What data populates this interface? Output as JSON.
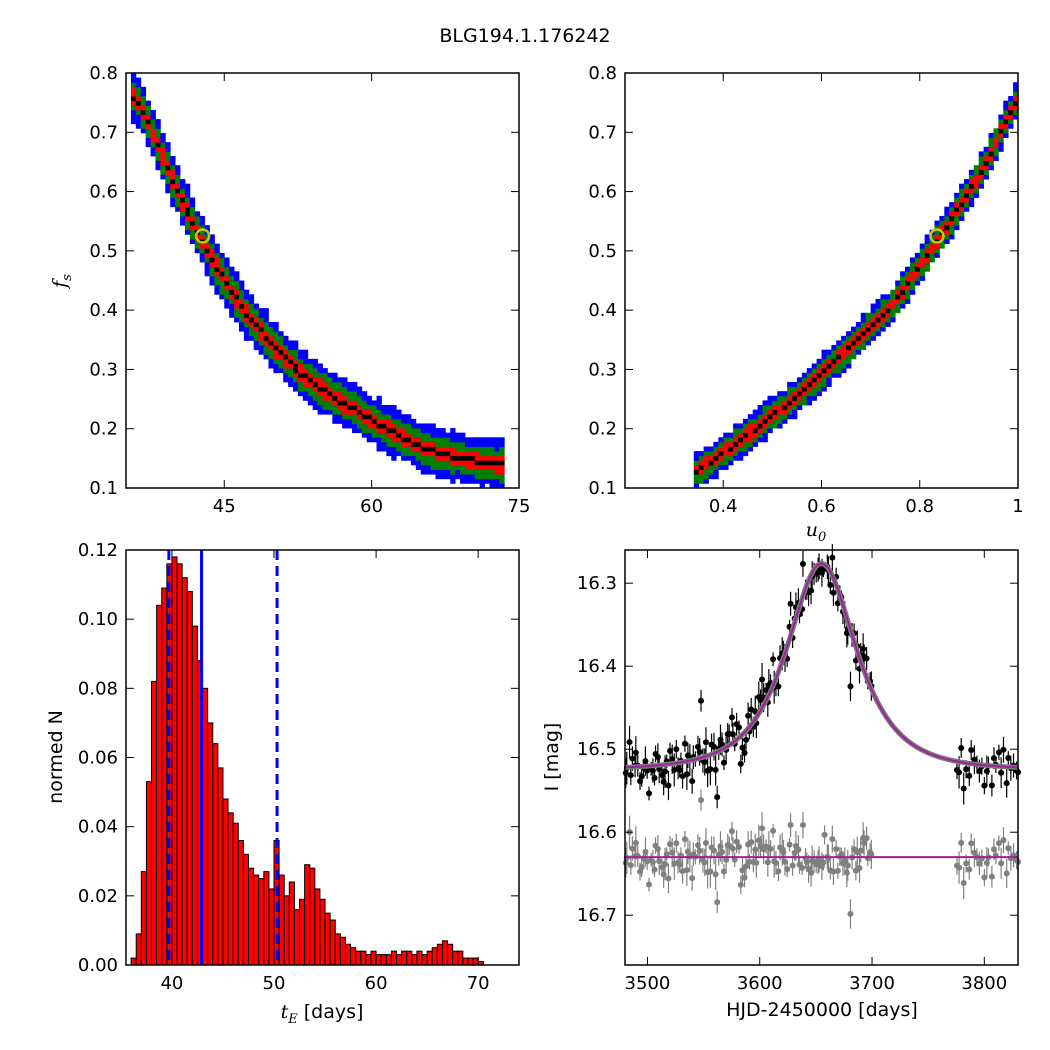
{
  "figure": {
    "title": "BLG194.1.176242"
  },
  "chart_data": [
    {
      "type": "heatmap",
      "panel": "top-left",
      "xlabel": "",
      "ylabel": "f_s",
      "xlim": [
        35,
        75
      ],
      "ylim": [
        0.1,
        0.8
      ],
      "xticks": [
        45,
        60,
        75
      ],
      "yticks": [
        0.1,
        0.2,
        0.3,
        0.4,
        0.5,
        0.6,
        0.7,
        0.8
      ],
      "levels": [
        {
          "name": "outer",
          "color": "#0000ff",
          "halfwidth": 0.04
        },
        {
          "name": "middle",
          "color": "#008000",
          "halfwidth": 0.026
        },
        {
          "name": "inner",
          "color": "#ff0000",
          "halfwidth": 0.013
        },
        {
          "name": "core",
          "color": "#000000",
          "halfwidth": 0.004
        }
      ],
      "ridge": [
        [
          36.0,
          0.76
        ],
        [
          38.0,
          0.69
        ],
        [
          40.0,
          0.61
        ],
        [
          42.0,
          0.54
        ],
        [
          44.3,
          0.47
        ],
        [
          47.0,
          0.4
        ],
        [
          50.0,
          0.34
        ],
        [
          53.0,
          0.29
        ],
        [
          56.5,
          0.25
        ],
        [
          60.5,
          0.21
        ],
        [
          65.0,
          0.17
        ],
        [
          69.0,
          0.15
        ],
        [
          73.0,
          0.14
        ]
      ],
      "best_fit": {
        "x": 42.8,
        "y": 0.525
      }
    },
    {
      "type": "heatmap",
      "panel": "top-right",
      "xlabel": "u_0",
      "ylabel": "",
      "xlim": [
        0.2,
        1.0
      ],
      "ylim": [
        0.1,
        0.8
      ],
      "xticks": [
        0.4,
        0.6,
        0.8,
        1.0
      ],
      "yticks": [
        0.1,
        0.2,
        0.3,
        0.4,
        0.5,
        0.6,
        0.7,
        0.8
      ],
      "levels": [
        {
          "name": "outer",
          "color": "#0000ff",
          "halfwidth": 0.03
        },
        {
          "name": "middle",
          "color": "#008000",
          "halfwidth": 0.022
        },
        {
          "name": "inner",
          "color": "#ff0000",
          "halfwidth": 0.011
        },
        {
          "name": "core",
          "color": "#000000",
          "halfwidth": 0.003
        }
      ],
      "ridge": [
        [
          0.35,
          0.13
        ],
        [
          0.45,
          0.19
        ],
        [
          0.55,
          0.255
        ],
        [
          0.65,
          0.33
        ],
        [
          0.75,
          0.415
        ],
        [
          0.85,
          0.535
        ],
        [
          0.93,
          0.64
        ],
        [
          1.0,
          0.76
        ]
      ],
      "best_fit": {
        "x": 0.835,
        "y": 0.525
      }
    },
    {
      "type": "bar",
      "panel": "bottom-left",
      "xlabel": "t_E [days]",
      "ylabel": "normed N",
      "xlim": [
        35.5,
        74
      ],
      "ylim": [
        0,
        0.12
      ],
      "xticks": [
        40,
        50,
        60,
        70
      ],
      "yticks": [
        0.0,
        0.02,
        0.04,
        0.06,
        0.08,
        0.1,
        0.12
      ],
      "ytick_labels": [
        "0.00",
        "0.02",
        "0.04",
        "0.06",
        "0.08",
        "0.10",
        "0.12"
      ],
      "bin_start": 36.0,
      "bin_width": 0.5,
      "values": [
        0.002,
        0.009,
        0.027,
        0.053,
        0.082,
        0.104,
        0.109,
        0.116,
        0.118,
        0.116,
        0.112,
        0.108,
        0.098,
        0.088,
        0.08,
        0.07,
        0.064,
        0.057,
        0.048,
        0.044,
        0.041,
        0.036,
        0.032,
        0.028,
        0.026,
        0.025,
        0.027,
        0.022,
        0.036,
        0.026,
        0.02,
        0.024,
        0.016,
        0.019,
        0.029,
        0.028,
        0.022,
        0.019,
        0.015,
        0.013,
        0.009,
        0.008,
        0.006,
        0.005,
        0.004,
        0.004,
        0.003,
        0.004,
        0.003,
        0.003,
        0.003,
        0.004,
        0.003,
        0.004,
        0.004,
        0.003,
        0.004,
        0.003,
        0.004,
        0.005,
        0.006,
        0.007,
        0.006,
        0.004,
        0.004,
        0.002,
        0.002,
        0.002,
        0.001
      ],
      "bar_color": "#ff0000",
      "edge_color": "#000000",
      "lines": [
        {
          "x": 39.7,
          "style": "dashed",
          "color": "#0000ff"
        },
        {
          "x": 42.9,
          "style": "solid",
          "color": "#0000ff"
        },
        {
          "x": 50.3,
          "style": "dashed",
          "color": "#0000ff"
        }
      ]
    },
    {
      "type": "scatter",
      "panel": "bottom-right",
      "xlabel": "HJD-2450000 [days]",
      "ylabel": "I [mag]",
      "xlim": [
        3480,
        3830
      ],
      "ylim": [
        16.76,
        16.26
      ],
      "y_inverted": true,
      "xticks": [
        3500,
        3600,
        3700,
        3800
      ],
      "yticks": [
        16.3,
        16.4,
        16.5,
        16.6,
        16.7
      ],
      "series": [
        {
          "name": "",
          "kind": "data",
          "color": "#000000"
        },
        {
          "name": "",
          "kind": "residuals",
          "color": "#808080"
        },
        {
          "name": "",
          "kind": "model",
          "color": "#a020a0"
        }
      ],
      "model": {
        "t0": 3655,
        "tE": 42.8,
        "u0": 0.835,
        "fs": 0.525,
        "baseline": 16.525,
        "residual_offset": 16.63
      }
    }
  ]
}
